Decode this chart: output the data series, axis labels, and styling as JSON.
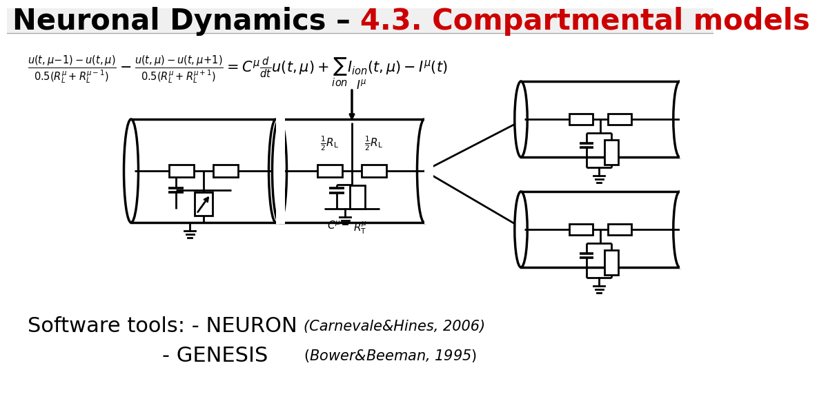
{
  "title_black": "Neuronal Dynamics – ",
  "title_red": "4.3. Compartmental models",
  "title_fontsize": 30,
  "bg_color": "#ffffff",
  "black": "#000000",
  "red": "#cc0000",
  "eq_fontsize": 15,
  "sw_fontsize": 22,
  "sw_ref_fontsize": 15
}
